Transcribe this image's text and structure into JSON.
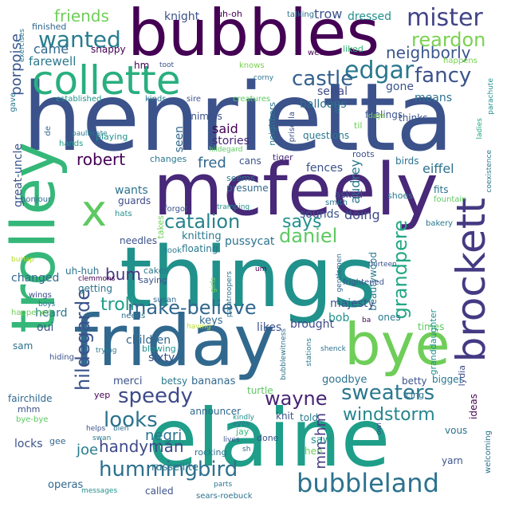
{
  "words": [
    {
      "text": "henrietta",
      "color": "#3b528b"
    },
    {
      "text": "bubbles",
      "color": "#440154"
    },
    {
      "text": "things",
      "color": "#21918c"
    },
    {
      "text": "friday",
      "color": "#31688e"
    },
    {
      "text": "elaine",
      "color": "#1f9e89"
    },
    {
      "text": "mcfeely",
      "color": "#482878"
    },
    {
      "text": "trolley",
      "color": "#35b779"
    },
    {
      "text": "bye",
      "color": "#6ece58"
    },
    {
      "text": "collette",
      "color": "#29af7f"
    },
    {
      "text": "brockett",
      "color": "#443a83"
    },
    {
      "text": "x",
      "color": "#5ec962"
    },
    {
      "text": "mister",
      "color": "#414487"
    },
    {
      "text": "bubbleland",
      "color": "#2c728e"
    },
    {
      "text": "edgar",
      "color": "#2a788e"
    },
    {
      "text": "wanted",
      "color": "#287d8e"
    },
    {
      "text": "catalion",
      "color": "#26828e"
    },
    {
      "text": "speedy",
      "color": "#3e4a89"
    },
    {
      "text": "daniel",
      "color": "#5ec962"
    },
    {
      "text": "castle",
      "color": "#34618d"
    },
    {
      "text": "fancy",
      "color": "#3b528b"
    },
    {
      "text": "reardon",
      "color": "#7ad151"
    },
    {
      "text": "sweaters",
      "color": "#2a788e"
    },
    {
      "text": "looks",
      "color": "#2c728e"
    },
    {
      "text": "make-believe",
      "color": "#31688e"
    },
    {
      "text": "hummingbird",
      "color": "#2d708e"
    },
    {
      "text": "windstorm",
      "color": "#25858e"
    },
    {
      "text": "wayne",
      "color": "#482475"
    },
    {
      "text": "grandpere",
      "color": "#22a785"
    },
    {
      "text": "hildegarde",
      "color": "#3b528b"
    },
    {
      "text": "neighborly",
      "color": "#39568c"
    },
    {
      "text": "says",
      "color": "#21918c"
    },
    {
      "text": "troll",
      "color": "#1f9e89"
    },
    {
      "text": "robert",
      "color": "#440154"
    },
    {
      "text": "friends",
      "color": "#6ece58"
    },
    {
      "text": "bum",
      "color": "#463480"
    },
    {
      "text": "handyman",
      "color": "#3e4a89"
    },
    {
      "text": "negri",
      "color": "#2c728e"
    },
    {
      "text": "joe",
      "color": "#287d8e"
    },
    {
      "text": "mm-hm",
      "color": "#443983"
    },
    {
      "text": "porpoise",
      "color": "#39568c"
    },
    {
      "text": "came",
      "color": "#31688e"
    },
    {
      "text": "farewell",
      "color": "#2a788e"
    },
    {
      "text": "snappy",
      "color": "#440154"
    },
    {
      "text": "knight",
      "color": "#3b528b"
    },
    {
      "text": "uh-oh",
      "color": "#440154"
    },
    {
      "text": "trow",
      "color": "#3b528b"
    },
    {
      "text": "dressed",
      "color": "#21918c"
    },
    {
      "text": "finished",
      "color": "#31688e"
    },
    {
      "text": "exercises",
      "color": "#2a788e"
    },
    {
      "text": "talking",
      "color": "#2c728e"
    },
    {
      "text": "liked",
      "color": "#35b779"
    },
    {
      "text": "wee",
      "color": "#440154"
    },
    {
      "text": "serial",
      "color": "#3e4a89"
    },
    {
      "text": "balloons",
      "color": "#2c728e"
    },
    {
      "text": "gone",
      "color": "#3b528b"
    },
    {
      "text": "means",
      "color": "#2c728e"
    },
    {
      "text": "feelings",
      "color": "#3b528b"
    },
    {
      "text": "happens",
      "color": "#7ad151"
    },
    {
      "text": "parachute",
      "color": "#21918c"
    },
    {
      "text": "ladies",
      "color": "#22a785"
    },
    {
      "text": "coexistence",
      "color": "#2a788e"
    },
    {
      "text": "hm",
      "color": "#440154"
    },
    {
      "text": "toot",
      "color": "#3b528b"
    },
    {
      "text": "knows",
      "color": "#7ad151"
    },
    {
      "text": "corny",
      "color": "#2c728e"
    },
    {
      "text": "kinds",
      "color": "#2a788e"
    },
    {
      "text": "sire",
      "color": "#3b528b"
    },
    {
      "text": "creatures",
      "color": "#5ec962"
    },
    {
      "text": "established",
      "color": "#21918c"
    },
    {
      "text": "gave",
      "color": "#2a788e"
    },
    {
      "text": "paulficate",
      "color": "#2a788e"
    },
    {
      "text": "hands",
      "color": "#1f9e89"
    },
    {
      "text": "de",
      "color": "#31688e"
    },
    {
      "text": "playing",
      "color": "#21918c"
    },
    {
      "text": "animals",
      "color": "#3b528b"
    },
    {
      "text": "said",
      "color": "#440154"
    },
    {
      "text": "stories",
      "color": "#482878"
    },
    {
      "text": "hildegard",
      "color": "#5ec962"
    },
    {
      "text": "seen",
      "color": "#31688e"
    },
    {
      "text": "neighbors",
      "color": "#2a788e"
    },
    {
      "text": "priscilla",
      "color": "#3b528b"
    },
    {
      "text": "au",
      "color": "#2c728e"
    },
    {
      "text": "days",
      "color": "#7ad151"
    },
    {
      "text": "til",
      "color": "#6ece58"
    },
    {
      "text": "thinks",
      "color": "#3b528b"
    },
    {
      "text": "questions",
      "color": "#2a788e"
    },
    {
      "text": "roots",
      "color": "#3b528b"
    },
    {
      "text": "birds",
      "color": "#2c728e"
    },
    {
      "text": "eiffel",
      "color": "#2c728e"
    },
    {
      "text": "fred",
      "color": "#31688e"
    },
    {
      "text": "cans",
      "color": "#3b528b"
    },
    {
      "text": "tiger",
      "color": "#482878"
    },
    {
      "text": "changes",
      "color": "#2a788e"
    },
    {
      "text": "fences",
      "color": "#3b528b"
    },
    {
      "text": "audrey",
      "color": "#2a788e"
    },
    {
      "text": "great-uncle",
      "color": "#39568c"
    },
    {
      "text": "wants",
      "color": "#2c728e"
    },
    {
      "text": "guards",
      "color": "#3e4a89"
    },
    {
      "text": "seems",
      "color": "#2a788e"
    },
    {
      "text": "presume",
      "color": "#31688e"
    },
    {
      "text": "tramping",
      "color": "#21918c"
    },
    {
      "text": "asked",
      "color": "#3b528b"
    },
    {
      "text": "fits",
      "color": "#2c728e"
    },
    {
      "text": "fountain",
      "color": "#5ec962"
    },
    {
      "text": "shoes",
      "color": "#2a788e"
    },
    {
      "text": "bonjour",
      "color": "#31688e"
    },
    {
      "text": "hats",
      "color": "#21918c"
    },
    {
      "text": "forgot",
      "color": "#3b528b"
    },
    {
      "text": "smith",
      "color": "#2a788e"
    },
    {
      "text": "sounds",
      "color": "#3b528b"
    },
    {
      "text": "doing",
      "color": "#3e4a89"
    },
    {
      "text": "bakery",
      "color": "#2a788e"
    },
    {
      "text": "takes",
      "color": "#6ece58"
    },
    {
      "text": "knitting",
      "color": "#2a788e"
    },
    {
      "text": "pussycat",
      "color": "#2c728e"
    },
    {
      "text": "needles",
      "color": "#3b528b"
    },
    {
      "text": "took",
      "color": "#2a788e"
    },
    {
      "text": "floating",
      "color": "#2a788e"
    },
    {
      "text": "thirteen",
      "color": "#3b528b"
    },
    {
      "text": "uh-huh",
      "color": "#2c728e"
    },
    {
      "text": "clemmons",
      "color": "#440154"
    },
    {
      "text": "burlap",
      "color": "#b5de2b"
    },
    {
      "text": "changed",
      "color": "#31688e"
    },
    {
      "text": "cakes",
      "color": "#2a788e"
    },
    {
      "text": "saying",
      "color": "#3b528b"
    },
    {
      "text": "paratroopers",
      "color": "#2c728e"
    },
    {
      "text": "girls",
      "color": "#7ad151"
    },
    {
      "text": "gentlemen",
      "color": "#31688e"
    },
    {
      "text": "um",
      "color": "#440154"
    },
    {
      "text": "beautywood",
      "color": "#2a788e"
    },
    {
      "text": "frightened",
      "color": "#3b528b"
    },
    {
      "text": "getting",
      "color": "#2c728e"
    },
    {
      "text": "wings",
      "color": "#3e4a89"
    },
    {
      "text": "heard",
      "color": "#2a788e"
    },
    {
      "text": "oui",
      "color": "#3b528b"
    },
    {
      "text": "susan",
      "color": "#31688e"
    },
    {
      "text": "boys",
      "color": "#2c728e"
    },
    {
      "text": "majesty",
      "color": "#3b528b"
    },
    {
      "text": "ones",
      "color": "#2a788e"
    },
    {
      "text": "happened",
      "color": "#6ece58"
    },
    {
      "text": "needs",
      "color": "#2c728e"
    },
    {
      "text": "having",
      "color": "#b5de2b"
    },
    {
      "text": "keys",
      "color": "#31688e"
    },
    {
      "text": "likes",
      "color": "#3b528b"
    },
    {
      "text": "brought",
      "color": "#3e4a89"
    },
    {
      "text": "bob",
      "color": "#21918c"
    },
    {
      "text": "ba",
      "color": "#440154"
    },
    {
      "text": "times",
      "color": "#5ec962"
    },
    {
      "text": "sam",
      "color": "#2c728e"
    },
    {
      "text": "children",
      "color": "#31688e"
    },
    {
      "text": "hiding",
      "color": "#3b528b"
    },
    {
      "text": "trying",
      "color": "#2a788e"
    },
    {
      "text": "blowing",
      "color": "#21918c"
    },
    {
      "text": "stations",
      "color": "#2a788e"
    },
    {
      "text": "sixty",
      "color": "#3b528b"
    },
    {
      "text": "bubblewitness",
      "color": "#2c728e"
    },
    {
      "text": "granddaughter",
      "color": "#21918c"
    },
    {
      "text": "shenck",
      "color": "#2c728e"
    },
    {
      "text": "merci",
      "color": "#3b528b"
    },
    {
      "text": "betsy",
      "color": "#2a788e"
    },
    {
      "text": "bananas",
      "color": "#31688e"
    },
    {
      "text": "goodbye",
      "color": "#2c728e"
    },
    {
      "text": "betty",
      "color": "#3b528b"
    },
    {
      "text": "bigger",
      "color": "#2a788e"
    },
    {
      "text": "lydia",
      "color": "#3e4a89"
    },
    {
      "text": "ideas",
      "color": "#440154"
    },
    {
      "text": "fairchilde",
      "color": "#31688e"
    },
    {
      "text": "yep",
      "color": "#440154"
    },
    {
      "text": "turtle",
      "color": "#5ec962"
    },
    {
      "text": "icing",
      "color": "#2c728e"
    },
    {
      "text": "mhm",
      "color": "#3b528b"
    },
    {
      "text": "bye-bye",
      "color": "#5ec962"
    },
    {
      "text": "announcer",
      "color": "#31688e"
    },
    {
      "text": "kindly",
      "color": "#21918c"
    },
    {
      "text": "knit",
      "color": "#3b528b"
    },
    {
      "text": "told",
      "color": "#2a788e"
    },
    {
      "text": "helps",
      "color": "#3b528b"
    },
    {
      "text": "bien",
      "color": "#2c728e"
    },
    {
      "text": "eyes",
      "color": "#2a788e"
    },
    {
      "text": "jay",
      "color": "#35b779"
    },
    {
      "text": "owl",
      "color": "#3e4a89"
    },
    {
      "text": "vous",
      "color": "#2c728e"
    },
    {
      "text": "locks",
      "color": "#3b528b"
    },
    {
      "text": "gee",
      "color": "#31688e"
    },
    {
      "text": "swan",
      "color": "#2a788e"
    },
    {
      "text": "done",
      "color": "#3b528b"
    },
    {
      "text": "saw",
      "color": "#21918c"
    },
    {
      "text": "hen",
      "color": "#6ece58"
    },
    {
      "text": "lives",
      "color": "#3b528b"
    },
    {
      "text": "sh",
      "color": "#31688e"
    },
    {
      "text": "rocking",
      "color": "#2c728e"
    },
    {
      "text": "russellite",
      "color": "#2a788e"
    },
    {
      "text": "yarn",
      "color": "#3b528b"
    },
    {
      "text": "welcoming",
      "color": "#2c728e"
    },
    {
      "text": "operas",
      "color": "#31688e"
    },
    {
      "text": "messages",
      "color": "#21918c"
    },
    {
      "text": "called",
      "color": "#3b528b"
    },
    {
      "text": "parts",
      "color": "#2a788e"
    },
    {
      "text": "sears-roebuck",
      "color": "#2c728e"
    }
  ]
}
